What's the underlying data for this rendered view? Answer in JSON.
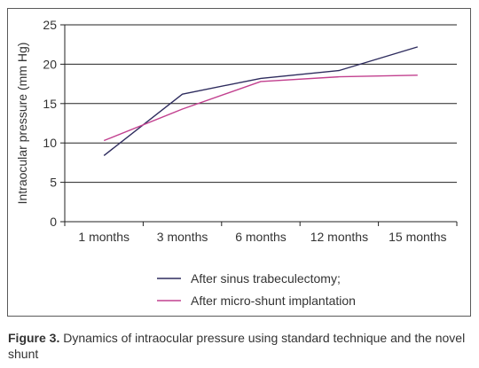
{
  "chart_data": {
    "type": "line",
    "categories": [
      "1 months",
      "3 months",
      "6 months",
      "12 months",
      "15 months"
    ],
    "ylabel": "Intraocular pressure (mm Hg)",
    "ylim": [
      0,
      25
    ],
    "yticks": [
      0,
      5,
      10,
      15,
      20,
      25
    ],
    "grid": true,
    "legend_position": "bottom",
    "series": [
      {
        "name": "After sinus trabeculectomy;",
        "color": "#2e2c5e",
        "values": [
          8.4,
          16.2,
          18.2,
          19.2,
          22.2
        ]
      },
      {
        "name": "After micro-shunt implantation",
        "color": "#c2408f",
        "values": [
          10.3,
          14.3,
          17.8,
          18.4,
          18.6
        ]
      }
    ]
  },
  "caption": {
    "label": "Figure 3.",
    "text": " Dynamics of intraocular pressure using standard technique and the novel shunt"
  }
}
